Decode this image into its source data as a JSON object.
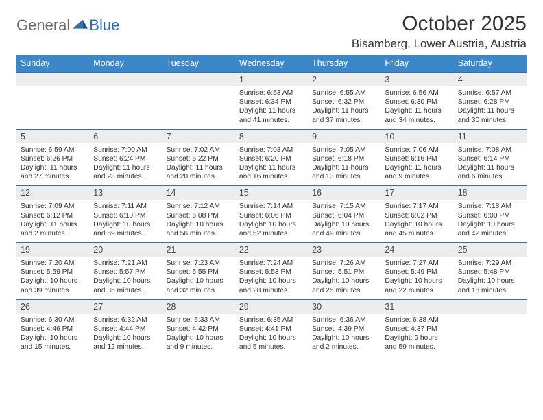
{
  "brand": {
    "word1": "General",
    "word2": "Blue"
  },
  "title": "October 2025",
  "location": "Bisamberg, Lower Austria, Austria",
  "colors": {
    "header_bg": "#3b87c8",
    "daynum_bg": "#eceded",
    "daynum_border": "#2f6fb0",
    "logo_gray": "#6b6b6b",
    "logo_blue": "#2f6fb0"
  },
  "fonts": {
    "title_size": 30,
    "location_size": 17,
    "dow_size": 12.5,
    "daynum_size": 12.5,
    "body_size": 10.3
  },
  "days_of_week": [
    "Sunday",
    "Monday",
    "Tuesday",
    "Wednesday",
    "Thursday",
    "Friday",
    "Saturday"
  ],
  "weeks": [
    [
      {
        "n": "",
        "sr": "",
        "ss": "",
        "dl": ""
      },
      {
        "n": "",
        "sr": "",
        "ss": "",
        "dl": ""
      },
      {
        "n": "",
        "sr": "",
        "ss": "",
        "dl": ""
      },
      {
        "n": "1",
        "sr": "Sunrise: 6:53 AM",
        "ss": "Sunset: 6:34 PM",
        "dl": "Daylight: 11 hours and 41 minutes."
      },
      {
        "n": "2",
        "sr": "Sunrise: 6:55 AM",
        "ss": "Sunset: 6:32 PM",
        "dl": "Daylight: 11 hours and 37 minutes."
      },
      {
        "n": "3",
        "sr": "Sunrise: 6:56 AM",
        "ss": "Sunset: 6:30 PM",
        "dl": "Daylight: 11 hours and 34 minutes."
      },
      {
        "n": "4",
        "sr": "Sunrise: 6:57 AM",
        "ss": "Sunset: 6:28 PM",
        "dl": "Daylight: 11 hours and 30 minutes."
      }
    ],
    [
      {
        "n": "5",
        "sr": "Sunrise: 6:59 AM",
        "ss": "Sunset: 6:26 PM",
        "dl": "Daylight: 11 hours and 27 minutes."
      },
      {
        "n": "6",
        "sr": "Sunrise: 7:00 AM",
        "ss": "Sunset: 6:24 PM",
        "dl": "Daylight: 11 hours and 23 minutes."
      },
      {
        "n": "7",
        "sr": "Sunrise: 7:02 AM",
        "ss": "Sunset: 6:22 PM",
        "dl": "Daylight: 11 hours and 20 minutes."
      },
      {
        "n": "8",
        "sr": "Sunrise: 7:03 AM",
        "ss": "Sunset: 6:20 PM",
        "dl": "Daylight: 11 hours and 16 minutes."
      },
      {
        "n": "9",
        "sr": "Sunrise: 7:05 AM",
        "ss": "Sunset: 6:18 PM",
        "dl": "Daylight: 11 hours and 13 minutes."
      },
      {
        "n": "10",
        "sr": "Sunrise: 7:06 AM",
        "ss": "Sunset: 6:16 PM",
        "dl": "Daylight: 11 hours and 9 minutes."
      },
      {
        "n": "11",
        "sr": "Sunrise: 7:08 AM",
        "ss": "Sunset: 6:14 PM",
        "dl": "Daylight: 11 hours and 6 minutes."
      }
    ],
    [
      {
        "n": "12",
        "sr": "Sunrise: 7:09 AM",
        "ss": "Sunset: 6:12 PM",
        "dl": "Daylight: 11 hours and 2 minutes."
      },
      {
        "n": "13",
        "sr": "Sunrise: 7:11 AM",
        "ss": "Sunset: 6:10 PM",
        "dl": "Daylight: 10 hours and 59 minutes."
      },
      {
        "n": "14",
        "sr": "Sunrise: 7:12 AM",
        "ss": "Sunset: 6:08 PM",
        "dl": "Daylight: 10 hours and 56 minutes."
      },
      {
        "n": "15",
        "sr": "Sunrise: 7:14 AM",
        "ss": "Sunset: 6:06 PM",
        "dl": "Daylight: 10 hours and 52 minutes."
      },
      {
        "n": "16",
        "sr": "Sunrise: 7:15 AM",
        "ss": "Sunset: 6:04 PM",
        "dl": "Daylight: 10 hours and 49 minutes."
      },
      {
        "n": "17",
        "sr": "Sunrise: 7:17 AM",
        "ss": "Sunset: 6:02 PM",
        "dl": "Daylight: 10 hours and 45 minutes."
      },
      {
        "n": "18",
        "sr": "Sunrise: 7:18 AM",
        "ss": "Sunset: 6:00 PM",
        "dl": "Daylight: 10 hours and 42 minutes."
      }
    ],
    [
      {
        "n": "19",
        "sr": "Sunrise: 7:20 AM",
        "ss": "Sunset: 5:59 PM",
        "dl": "Daylight: 10 hours and 39 minutes."
      },
      {
        "n": "20",
        "sr": "Sunrise: 7:21 AM",
        "ss": "Sunset: 5:57 PM",
        "dl": "Daylight: 10 hours and 35 minutes."
      },
      {
        "n": "21",
        "sr": "Sunrise: 7:23 AM",
        "ss": "Sunset: 5:55 PM",
        "dl": "Daylight: 10 hours and 32 minutes."
      },
      {
        "n": "22",
        "sr": "Sunrise: 7:24 AM",
        "ss": "Sunset: 5:53 PM",
        "dl": "Daylight: 10 hours and 28 minutes."
      },
      {
        "n": "23",
        "sr": "Sunrise: 7:26 AM",
        "ss": "Sunset: 5:51 PM",
        "dl": "Daylight: 10 hours and 25 minutes."
      },
      {
        "n": "24",
        "sr": "Sunrise: 7:27 AM",
        "ss": "Sunset: 5:49 PM",
        "dl": "Daylight: 10 hours and 22 minutes."
      },
      {
        "n": "25",
        "sr": "Sunrise: 7:29 AM",
        "ss": "Sunset: 5:48 PM",
        "dl": "Daylight: 10 hours and 18 minutes."
      }
    ],
    [
      {
        "n": "26",
        "sr": "Sunrise: 6:30 AM",
        "ss": "Sunset: 4:46 PM",
        "dl": "Daylight: 10 hours and 15 minutes."
      },
      {
        "n": "27",
        "sr": "Sunrise: 6:32 AM",
        "ss": "Sunset: 4:44 PM",
        "dl": "Daylight: 10 hours and 12 minutes."
      },
      {
        "n": "28",
        "sr": "Sunrise: 6:33 AM",
        "ss": "Sunset: 4:42 PM",
        "dl": "Daylight: 10 hours and 9 minutes."
      },
      {
        "n": "29",
        "sr": "Sunrise: 6:35 AM",
        "ss": "Sunset: 4:41 PM",
        "dl": "Daylight: 10 hours and 5 minutes."
      },
      {
        "n": "30",
        "sr": "Sunrise: 6:36 AM",
        "ss": "Sunset: 4:39 PM",
        "dl": "Daylight: 10 hours and 2 minutes."
      },
      {
        "n": "31",
        "sr": "Sunrise: 6:38 AM",
        "ss": "Sunset: 4:37 PM",
        "dl": "Daylight: 9 hours and 59 minutes."
      },
      {
        "n": "",
        "sr": "",
        "ss": "",
        "dl": ""
      }
    ]
  ]
}
